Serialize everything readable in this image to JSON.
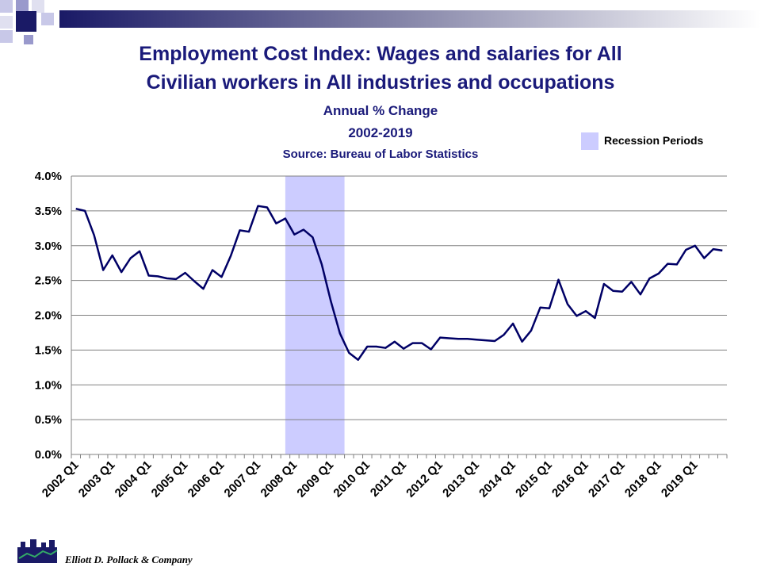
{
  "chart_data": {
    "type": "line",
    "title_lines": [
      "Employment Cost Index: Wages and salaries for All",
      "Civilian workers in All industries and occupations"
    ],
    "subtitle_lines": [
      "Annual % Change",
      "2002-2019",
      "Source: Bureau of Labor Statistics"
    ],
    "categories": [
      "2002 Q1",
      null,
      null,
      null,
      "2003 Q1",
      null,
      null,
      null,
      "2004 Q1",
      null,
      null,
      null,
      "2005 Q1",
      null,
      null,
      null,
      "2006 Q1",
      null,
      null,
      null,
      "2007 Q1",
      null,
      null,
      null,
      "2008 Q1",
      null,
      null,
      null,
      "2009 Q1",
      null,
      null,
      null,
      "2010 Q1",
      null,
      null,
      null,
      "2011 Q1",
      null,
      null,
      null,
      "2012 Q1",
      null,
      null,
      null,
      "2013 Q1",
      null,
      null,
      null,
      "2014 Q1",
      null,
      null,
      null,
      "2015 Q1",
      null,
      null,
      null,
      "2016 Q1",
      null,
      null,
      null,
      "2017 Q1",
      null,
      null,
      null,
      "2018 Q1",
      null,
      null,
      null,
      "2019 Q1",
      null,
      null,
      null
    ],
    "values": [
      3.53,
      3.5,
      3.15,
      2.65,
      2.86,
      2.62,
      2.82,
      2.92,
      2.57,
      2.56,
      2.53,
      2.52,
      2.61,
      2.49,
      2.38,
      2.65,
      2.55,
      2.85,
      3.22,
      3.2,
      3.57,
      3.55,
      3.32,
      3.39,
      3.16,
      3.23,
      3.12,
      2.73,
      2.2,
      1.74,
      1.46,
      1.36,
      1.55,
      1.55,
      1.53,
      1.62,
      1.52,
      1.6,
      1.6,
      1.51,
      1.68,
      1.67,
      1.66,
      1.66,
      1.65,
      1.64,
      1.63,
      1.72,
      1.88,
      1.62,
      1.78,
      2.11,
      2.1,
      2.51,
      2.16,
      1.99,
      2.06,
      1.96,
      2.45,
      2.35,
      2.34,
      2.48,
      2.3,
      2.53,
      2.6,
      2.74,
      2.73,
      2.94,
      3.0,
      2.82,
      2.95,
      2.93
    ],
    "color": "#000066",
    "ylim": [
      0,
      4
    ],
    "yticks": [
      {
        "value": 0,
        "label": "0.0%"
      },
      {
        "value": 0.5,
        "label": "0.5%"
      },
      {
        "value": 1,
        "label": "1.0%"
      },
      {
        "value": 1.5,
        "label": "1.5%"
      },
      {
        "value": 2,
        "label": "2.0%"
      },
      {
        "value": 2.5,
        "label": "2.5%"
      },
      {
        "value": 3,
        "label": "3.0%"
      },
      {
        "value": 3.5,
        "label": "3.5%"
      },
      {
        "value": 4,
        "label": "4.0%"
      }
    ],
    "grid": true,
    "shading": {
      "label": "Recession Periods",
      "color": "#ccccff",
      "start_index": 23,
      "end_index": 29
    }
  },
  "footer": "Elliott D. Pollack & Company"
}
